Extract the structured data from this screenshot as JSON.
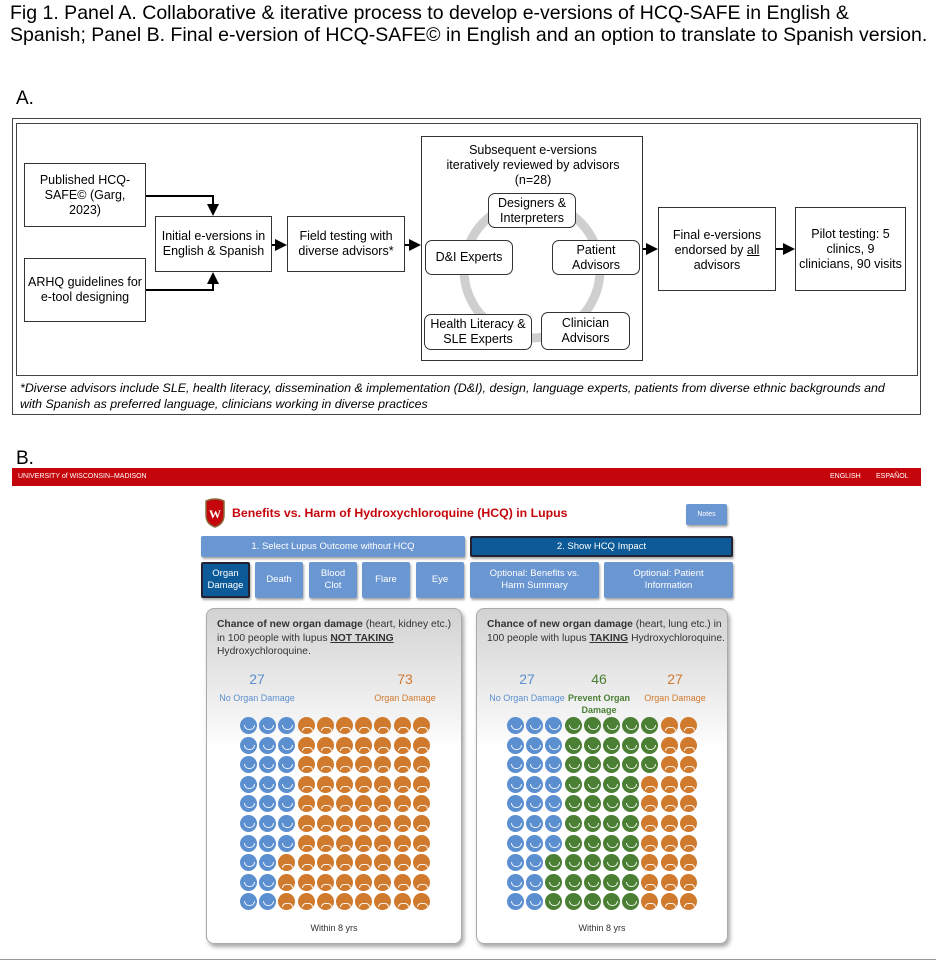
{
  "caption": "Fig 1. Panel A. Collaborative & iterative process to develop e-versions of HCQ-SAFE in English & Spanish; Panel B. Final e-version of HCQ-SAFE© in English and an option to translate to Spanish version.",
  "panel_a": {
    "label": "A.",
    "published": "Published HCQ-SAFE© (Garg, 2023)",
    "arhq": "ARHQ guidelines for e-tool designing",
    "initial": "Initial e-versions in English & Spanish",
    "field": "Field testing with diverse advisors*",
    "subsequent_title": "Subsequent e-versions iteratively reviewed by advisors (n=28)",
    "cycle": [
      "Designers & Interpreters",
      "Patient Advisors",
      "Clinician Advisors",
      "Health Literacy & SLE Experts",
      "D&I Experts"
    ],
    "final_pre": "Final e-versions endorsed by ",
    "final_u": "all",
    "final_post": " advisors",
    "pilot": "Pilot testing: 5 clinics, 9 clinicians, 90 visits",
    "footnote": "*Diverse advisors include SLE, health literacy, dissemination & implementation (D&I), design, language experts, patients from diverse ethnic backgrounds and with Spanish as preferred language, clinicians working in diverse practices"
  },
  "panel_b": {
    "label": "B.",
    "university": "UNIVERSITY of WISCONSIN–MADISON",
    "lang_english": "ENGLISH",
    "lang_spanish": "ESPAÑOL",
    "title": "Benefits vs. Harm of Hydroxychloroquine (HCQ) in Lupus",
    "notes": "Notes",
    "tabs": [
      "1. Select Lupus Outcome without HCQ",
      "2. Show HCQ Impact"
    ],
    "outcomes": [
      "Organ Damage",
      "Death",
      "Blood Clot",
      "Flare",
      "Eye"
    ],
    "optional": [
      "Optional: Benefits vs. Harm Summary",
      "Optional: Patient Information"
    ],
    "colors": {
      "red": "#c5050c",
      "blue": "#5b8fd0",
      "green": "#4b8034",
      "orange": "#d07a2e",
      "dark_blue": "#0d5a99"
    },
    "cards": [
      {
        "bold": "Chance of new organ damage",
        "text1": " (heart, kidney etc.) in 100 people with lupus ",
        "emph": "NOT TAKING",
        "text2": " Hydroxychloroquine.",
        "stats": [
          {
            "value": "27",
            "label": "No Organ Damage",
            "color": "blue"
          },
          {
            "value": "73",
            "label": "Organ Damage",
            "color": "orange"
          }
        ],
        "grid_rows": [
          [
            3,
            0,
            7
          ],
          [
            3,
            0,
            7
          ],
          [
            3,
            0,
            7
          ],
          [
            3,
            0,
            7
          ],
          [
            3,
            0,
            7
          ],
          [
            3,
            0,
            7
          ],
          [
            3,
            0,
            7
          ],
          [
            2,
            0,
            8
          ],
          [
            2,
            0,
            8
          ],
          [
            2,
            0,
            8
          ]
        ],
        "footer": "Within 8 yrs"
      },
      {
        "bold": "Chance of new organ damage",
        "text1": " (heart, lung etc.) in 100 people with lupus ",
        "emph": "TAKING",
        "text2": " Hydroxychloroquine.",
        "stats": [
          {
            "value": "27",
            "label": "No Organ Damage",
            "color": "blue"
          },
          {
            "value": "46",
            "label": "Prevent Organ Damage",
            "color": "green"
          },
          {
            "value": "27",
            "label": "Organ Damage",
            "color": "orange"
          }
        ],
        "grid_rows": [
          [
            3,
            5,
            2
          ],
          [
            3,
            5,
            2
          ],
          [
            3,
            5,
            2
          ],
          [
            3,
            4,
            3
          ],
          [
            3,
            4,
            3
          ],
          [
            3,
            4,
            3
          ],
          [
            3,
            4,
            3
          ],
          [
            2,
            5,
            3
          ],
          [
            2,
            5,
            3
          ],
          [
            2,
            5,
            3
          ]
        ],
        "footer": "Within 8 yrs"
      }
    ]
  }
}
